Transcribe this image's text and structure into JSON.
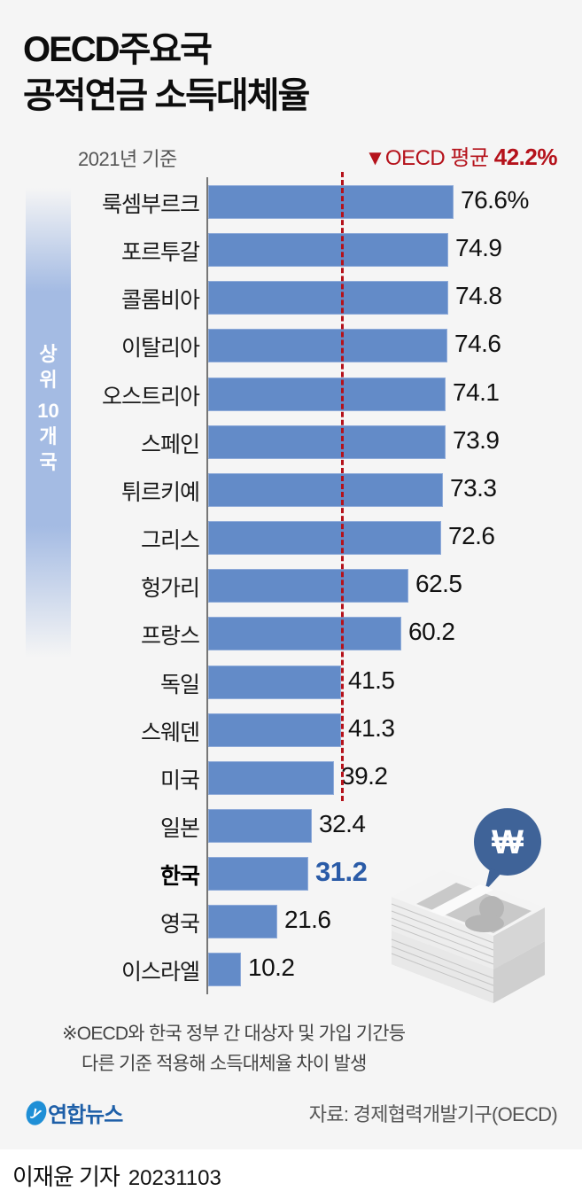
{
  "header": {
    "title_line1": "OECD주요국",
    "title_line2": "공적연금 소득대체율",
    "base_year": "2021년 기준",
    "avg_marker": "▼OECD 평균",
    "avg_value": "42.2%"
  },
  "side_label": [
    "상",
    "위",
    "10",
    "개",
    "국"
  ],
  "rows": [
    {
      "country": "룩셈부르크",
      "value": 76.6,
      "display": "76.6%",
      "bold": false
    },
    {
      "country": "포르투갈",
      "value": 74.9,
      "display": "74.9",
      "bold": false
    },
    {
      "country": "콜롬비아",
      "value": 74.8,
      "display": "74.8",
      "bold": false
    },
    {
      "country": "이탈리아",
      "value": 74.6,
      "display": "74.6",
      "bold": false
    },
    {
      "country": "오스트리아",
      "value": 74.1,
      "display": "74.1",
      "bold": false
    },
    {
      "country": "스페인",
      "value": 73.9,
      "display": "73.9",
      "bold": false
    },
    {
      "country": "튀르키예",
      "value": 73.3,
      "display": "73.3",
      "bold": false
    },
    {
      "country": "그리스",
      "value": 72.6,
      "display": "72.6",
      "bold": false
    },
    {
      "country": "헝가리",
      "value": 62.5,
      "display": "62.5",
      "bold": false
    },
    {
      "country": "프랑스",
      "value": 60.2,
      "display": "60.2",
      "bold": false
    },
    {
      "country": "독일",
      "value": 41.5,
      "display": "41.5",
      "bold": false
    },
    {
      "country": "스웨덴",
      "value": 41.3,
      "display": "41.3",
      "bold": false
    },
    {
      "country": "미국",
      "value": 39.2,
      "display": "39.2",
      "bold": false
    },
    {
      "country": "일본",
      "value": 32.4,
      "display": "32.4",
      "bold": false
    },
    {
      "country": "한국",
      "value": 31.2,
      "display": "31.2",
      "bold": true
    },
    {
      "country": "영국",
      "value": 21.6,
      "display": "21.6",
      "bold": false
    },
    {
      "country": "이스라엘",
      "value": 10.2,
      "display": "10.2",
      "bold": false
    }
  ],
  "footer": {
    "note_line1": "※OECD와 한국 정부 간 대상자 및 가입 기간등",
    "note_line2": "다른 기준 적용해 소득대체율 차이 발생",
    "logo_text": "연합뉴스",
    "source": "자료: 경제협력개발기구(OECD)",
    "reporter": "이재윤 기자",
    "date": "20231103"
  },
  "colors": {
    "bar": "#638bc8",
    "avg_line": "#b5121b",
    "highlight_value": "#2a5ba7",
    "side_band": "#a4bbe3",
    "background": "#f5f5f5"
  },
  "chart_data": {
    "type": "bar",
    "orientation": "horizontal",
    "title": "OECD주요국 공적연금 소득대체율",
    "subtitle": "2021년 기준",
    "categories": [
      "룩셈부르크",
      "포르투갈",
      "콜롬비아",
      "이탈리아",
      "오스트리아",
      "스페인",
      "튀르키예",
      "그리스",
      "헝가리",
      "프랑스",
      "독일",
      "스웨덴",
      "미국",
      "일본",
      "한국",
      "영국",
      "이스라엘"
    ],
    "values": [
      76.6,
      74.9,
      74.8,
      74.6,
      74.1,
      73.9,
      73.3,
      72.6,
      62.5,
      60.2,
      41.5,
      41.3,
      39.2,
      32.4,
      31.2,
      21.6,
      10.2
    ],
    "unit": "%",
    "reference_line": {
      "label": "OECD 평균",
      "value": 42.2
    },
    "group_annotation": {
      "label": "상위 10개국",
      "range": [
        0,
        9
      ]
    },
    "highlight": "한국",
    "xlabel": "",
    "ylabel": "",
    "grid": false,
    "legend": "none",
    "source": "경제협력개발기구(OECD)"
  }
}
